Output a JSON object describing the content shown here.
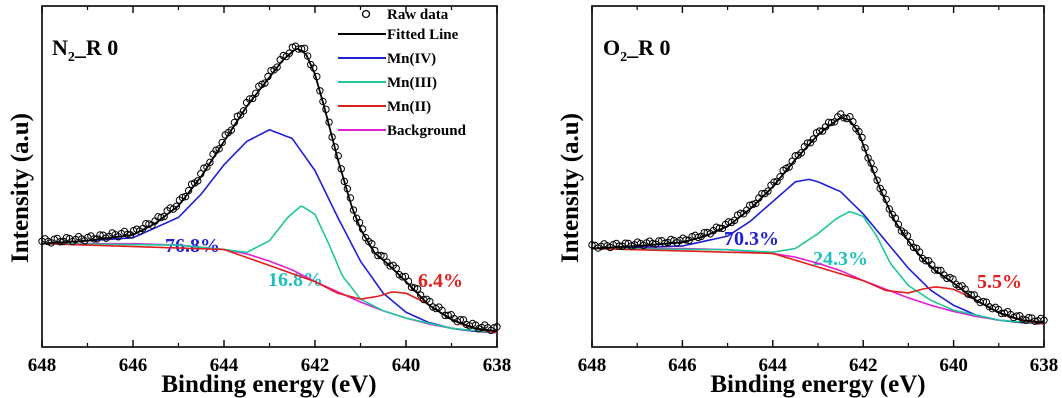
{
  "chart_data": [
    {
      "type": "line",
      "title": "N_R 0",
      "title_main": "N",
      "title_sub": "2",
      "title_rest": "_R 0",
      "xlabel": "Binding energy (eV)",
      "ylabel": "Intensity (a.u)",
      "xlim": [
        648,
        638
      ],
      "x_ticks": [
        "648",
        "646",
        "644",
        "642",
        "640",
        "638"
      ],
      "grid": false,
      "legend": {
        "placement": "top-right",
        "entries": [
          {
            "label": "Raw data",
            "color": "#000000",
            "marker": "open-circle"
          },
          {
            "label": "Fitted Line",
            "color": "#000000"
          },
          {
            "label": "Mn(IV)",
            "color": "#1f1fd6"
          },
          {
            "label": "Mn(III)",
            "color": "#1fc79a"
          },
          {
            "label": "Mn(II)",
            "color": "#e01f1f"
          },
          {
            "label": "Background",
            "color": "#e01fd6"
          }
        ]
      },
      "annotations": [
        {
          "text": "76.8%",
          "color": "#1f1fd6"
        },
        {
          "text": "16.8%",
          "color": "#1fbfbf"
        },
        {
          "text": "6.4%",
          "color": "#e01f1f"
        }
      ],
      "series": [
        {
          "name": "Background",
          "x": [
            648,
            646,
            645,
            644,
            643.5,
            643,
            642.5,
            642,
            641.5,
            641,
            640.5,
            640,
            639.5,
            639,
            638.5,
            638
          ],
          "y": [
            0.33,
            0.33,
            0.325,
            0.31,
            0.295,
            0.27,
            0.24,
            0.2,
            0.165,
            0.13,
            0.1,
            0.075,
            0.055,
            0.04,
            0.03,
            0.025
          ]
        },
        {
          "name": "Mn(IV)",
          "x": [
            648,
            646,
            645,
            644.5,
            644,
            643.5,
            643,
            642.5,
            642,
            641.5,
            641,
            640.5,
            640,
            639.5,
            639,
            638.5,
            638
          ],
          "y": [
            0.33,
            0.35,
            0.42,
            0.5,
            0.6,
            0.68,
            0.72,
            0.69,
            0.58,
            0.42,
            0.27,
            0.16,
            0.095,
            0.06,
            0.04,
            0.03,
            0.025
          ]
        },
        {
          "name": "Mn(III)",
          "x": [
            648,
            645,
            644,
            643.5,
            643,
            642.6,
            642.3,
            642,
            641.7,
            641.4,
            641,
            640.5,
            640,
            639,
            638
          ],
          "y": [
            0.33,
            0.325,
            0.31,
            0.3,
            0.34,
            0.42,
            0.46,
            0.43,
            0.33,
            0.22,
            0.14,
            0.1,
            0.075,
            0.04,
            0.025
          ]
        },
        {
          "name": "Mn(II)",
          "x": [
            648,
            644,
            642,
            641.5,
            641,
            640.6,
            640.3,
            640,
            639.6,
            639.2,
            638.8,
            638.4,
            638
          ],
          "y": [
            0.33,
            0.31,
            0.2,
            0.16,
            0.14,
            0.15,
            0.165,
            0.16,
            0.13,
            0.09,
            0.055,
            0.035,
            0.025
          ]
        },
        {
          "name": "Fitted Line",
          "x": [
            648,
            647,
            646,
            645.5,
            645,
            644.5,
            644,
            643.5,
            643,
            642.7,
            642.4,
            642.2,
            642,
            641.8,
            641.5,
            641.2,
            641,
            640.7,
            640.4,
            640,
            639.5,
            639,
            638.5,
            638
          ],
          "y": [
            0.33,
            0.34,
            0.36,
            0.4,
            0.46,
            0.56,
            0.68,
            0.8,
            0.9,
            0.96,
            1.0,
            0.98,
            0.91,
            0.8,
            0.62,
            0.46,
            0.38,
            0.3,
            0.26,
            0.2,
            0.12,
            0.07,
            0.04,
            0.03
          ]
        },
        {
          "name": "Raw data",
          "marker": "open-circle",
          "x_from": 648,
          "x_to": 638,
          "count": 150,
          "follows": "Fitted Line"
        }
      ]
    },
    {
      "type": "line",
      "title": "O_R 0",
      "title_main": "O",
      "title_sub": "2",
      "title_rest": "_R 0",
      "xlabel": "Binding energy (eV)",
      "ylabel": "Intensity (a.u)",
      "xlim": [
        648,
        638
      ],
      "x_ticks": [
        "648",
        "646",
        "644",
        "642",
        "640",
        "638"
      ],
      "grid": false,
      "annotations": [
        {
          "text": "70.3%",
          "color": "#1f1fd6"
        },
        {
          "text": "24.3%",
          "color": "#1fbfbf"
        },
        {
          "text": "5.5%",
          "color": "#e01f1f"
        }
      ],
      "series": [
        {
          "name": "Background",
          "x": [
            648,
            646,
            645,
            644,
            643.5,
            643,
            642.5,
            642,
            641.5,
            641,
            640.5,
            640,
            639.5,
            639,
            638.5,
            638
          ],
          "y": [
            0.33,
            0.33,
            0.325,
            0.31,
            0.295,
            0.27,
            0.24,
            0.2,
            0.165,
            0.13,
            0.1,
            0.075,
            0.055,
            0.04,
            0.03,
            0.025
          ]
        },
        {
          "name": "Mn(IV)",
          "x": [
            648,
            646,
            645,
            644.5,
            644,
            643.5,
            643.2,
            643,
            642.5,
            642,
            641.5,
            641,
            640.5,
            640,
            639.5,
            639,
            638.5,
            638
          ],
          "y": [
            0.33,
            0.34,
            0.38,
            0.44,
            0.52,
            0.6,
            0.61,
            0.6,
            0.56,
            0.47,
            0.36,
            0.25,
            0.16,
            0.1,
            0.06,
            0.04,
            0.03,
            0.025
          ]
        },
        {
          "name": "Mn(III)",
          "x": [
            648,
            645,
            644,
            643.5,
            643,
            642.6,
            642.3,
            642,
            641.7,
            641.4,
            641,
            640.5,
            640,
            639,
            638
          ],
          "y": [
            0.33,
            0.325,
            0.315,
            0.33,
            0.39,
            0.45,
            0.48,
            0.46,
            0.38,
            0.27,
            0.18,
            0.12,
            0.08,
            0.04,
            0.025
          ]
        },
        {
          "name": "Mn(II)",
          "x": [
            648,
            644,
            642,
            641.5,
            641,
            640.7,
            640.4,
            640,
            639.6,
            639.2,
            638.8,
            638.4,
            638
          ],
          "y": [
            0.33,
            0.31,
            0.2,
            0.16,
            0.15,
            0.165,
            0.175,
            0.165,
            0.13,
            0.09,
            0.055,
            0.035,
            0.025
          ]
        },
        {
          "name": "Fitted Line",
          "x": [
            648,
            647,
            646,
            645.5,
            645,
            644.5,
            644,
            643.5,
            643,
            642.8,
            642.5,
            642.3,
            642.1,
            641.9,
            641.6,
            641.3,
            641,
            640.7,
            640.4,
            640,
            639.5,
            639,
            638.5,
            638
          ],
          "y": [
            0.33,
            0.34,
            0.355,
            0.38,
            0.42,
            0.49,
            0.58,
            0.69,
            0.79,
            0.82,
            0.86,
            0.85,
            0.8,
            0.7,
            0.56,
            0.44,
            0.36,
            0.29,
            0.24,
            0.19,
            0.12,
            0.07,
            0.04,
            0.03
          ]
        },
        {
          "name": "Raw data",
          "marker": "open-circle",
          "x_from": 648,
          "x_to": 638,
          "count": 150,
          "follows": "Fitted Line"
        }
      ]
    }
  ]
}
